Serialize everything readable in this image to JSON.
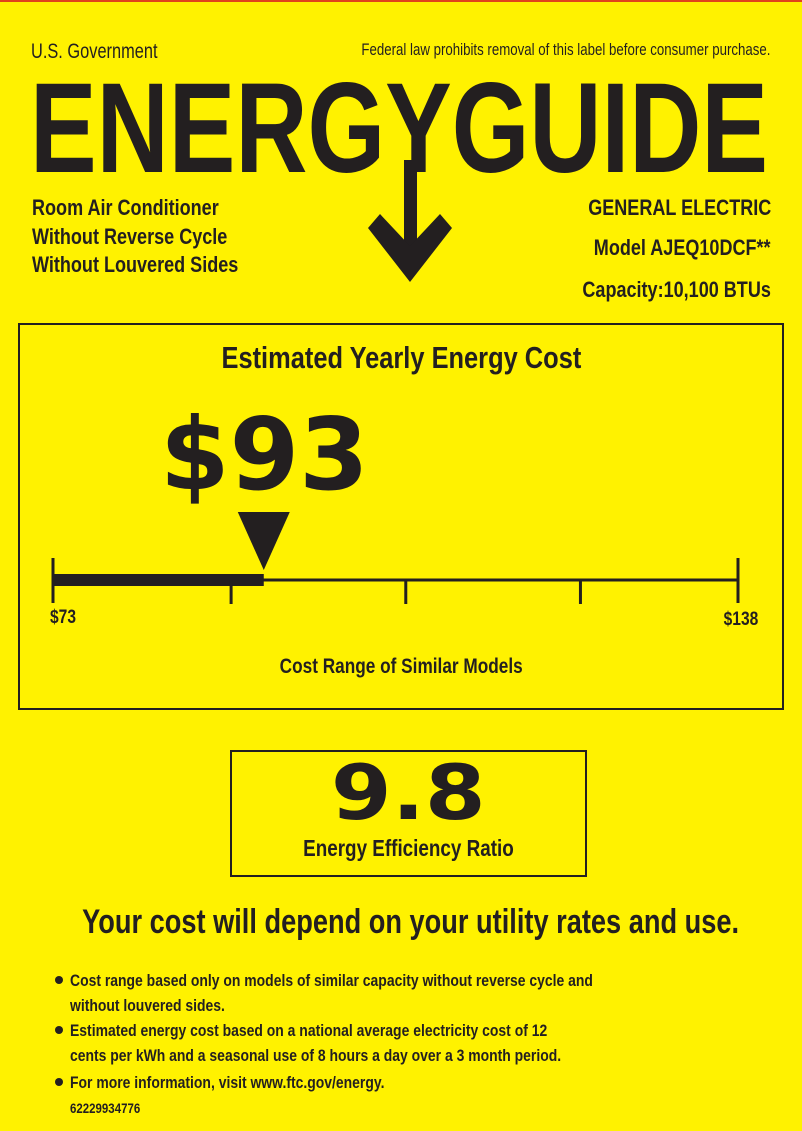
{
  "header": {
    "government": "U.S. Government",
    "notice": "Federal law prohibits removal of this label before consumer purchase.",
    "logo_text": "ENERGYGUIDE"
  },
  "product": {
    "lines": [
      "Room Air Conditioner",
      "Without Reverse Cycle",
      "Without Louvered Sides"
    ],
    "brand": "GENERAL ELECTRIC",
    "model": "Model AJEQ10DCF**",
    "capacity": "Capacity:10,100 BTUs"
  },
  "cost": {
    "title": "Estimated Yearly Energy Cost",
    "value": "$93",
    "range_min": "$73",
    "range_max": "$138",
    "range_label": "Cost Range of Similar Models",
    "min_value": 73,
    "max_value": 138,
    "current_value": 93
  },
  "efficiency": {
    "value": "9.8",
    "label": "Energy Efficiency Ratio"
  },
  "disclaimer": "Your cost will depend on your utility rates and use.",
  "notes": [
    [
      "Cost range based only on models of similar capacity without reverse cycle and",
      "without louvered sides."
    ],
    [
      "Estimated energy cost based on a national average electricity cost of 12",
      "cents per kWh and a seasonal use of 8 hours a day over a 3 month period."
    ],
    [
      "For more information, visit www.ftc.gov/energy."
    ]
  ],
  "label_code": "62229934776",
  "colors": {
    "background": "#fff200",
    "ink": "#231f20",
    "top_rule": "#e0431c"
  }
}
